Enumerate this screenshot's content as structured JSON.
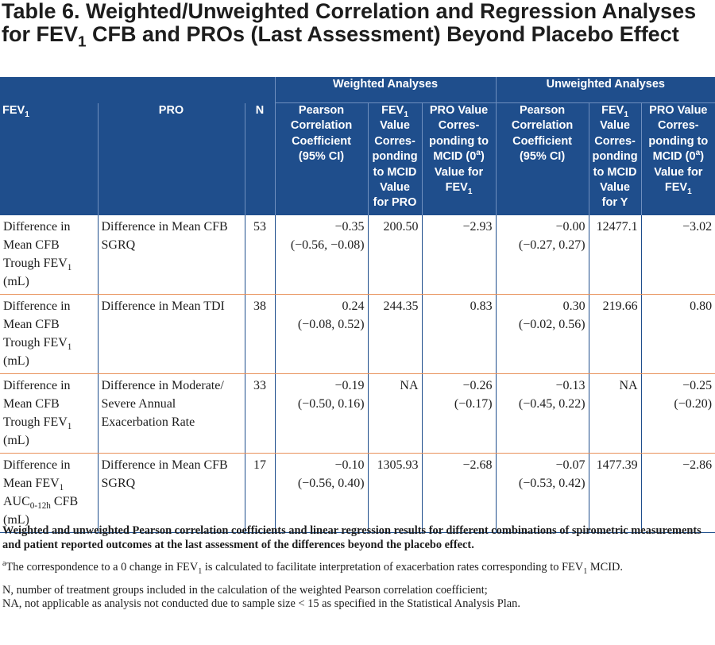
{
  "title": "Table 6. Weighted/Unweighted Correlation and Regression Analyses for FEV1 CFB and PROs (Last Assessment) Beyond Placebo Effect",
  "groups": {
    "weighted": "Weighted Analyses",
    "unweighted": "Unweighted Analyses"
  },
  "headers": {
    "fev1": "FEV1",
    "pro": "PRO",
    "n": "N",
    "pearson": "Pearson Correlation Coefficient (95% CI)",
    "fev1_value_pro": "FEV1 Value Corresponding to MCID Value for PRO",
    "pro_value_fev1": "PRO Value Corresponding to MCID (0a) Value for FEV1",
    "fev1_value_y": "FEV1 Value Corresponding to MCID Value for Y"
  },
  "rows": [
    {
      "fev1": "Difference in Mean CFB Trough FEV1 (mL)",
      "pro": "Difference in Mean CFB SGRQ",
      "n": "53",
      "w_r": "−0.35",
      "w_ci": "(−0.56, −0.08)",
      "w_fev": "200.50",
      "w_pro": "−2.93",
      "w_pro_b": "",
      "u_r": "−0.00",
      "u_ci": "(−0.27, 0.27)",
      "u_fev": "12477.1",
      "u_pro": "−3.02",
      "u_pro_b": ""
    },
    {
      "fev1": "Difference in Mean CFB Trough FEV1 (mL)",
      "pro": "Difference in Mean TDI",
      "n": "38",
      "w_r": "0.24",
      "w_ci": "(−0.08, 0.52)",
      "w_fev": "244.35",
      "w_pro": "0.83",
      "w_pro_b": "",
      "u_r": "0.30",
      "u_ci": "(−0.02, 0.56)",
      "u_fev": "219.66",
      "u_pro": "0.80",
      "u_pro_b": ""
    },
    {
      "fev1": "Difference in Mean CFB Trough FEV1 (mL)",
      "pro": "Difference in Moderate/ Severe Annual Exacerbation Rate",
      "n": "33",
      "w_r": "−0.19",
      "w_ci": "(−0.50, 0.16)",
      "w_fev": "NA",
      "w_pro": "−0.26",
      "w_pro_b": "(−0.17)",
      "u_r": "−0.13",
      "u_ci": "(−0.45, 0.22)",
      "u_fev": "NA",
      "u_pro": "−0.25",
      "u_pro_b": "(−0.20)"
    },
    {
      "fev1": "Difference in Mean FEV1 AUC0-12h CFB (mL)",
      "pro": "Difference in Mean CFB SGRQ",
      "n": "17",
      "w_r": "−0.10",
      "w_ci": "(−0.56, 0.40)",
      "w_fev": "1305.93",
      "w_pro": "−2.68",
      "w_pro_b": "",
      "u_r": "−0.07",
      "u_ci": "(−0.53, 0.42)",
      "u_fev": "1477.39",
      "u_pro": "−2.86",
      "u_pro_b": ""
    }
  ],
  "notes": {
    "summary": "Weighted and unweighted Pearson correlation coefficients and linear regression results for different combinations of spirometric measurements and patient reported outcomes at the last assessment of the differences beyond the placebo effect.",
    "footnote_a": "aThe correspondence to a 0 change in FEV1 is calculated to facilitate interpretation of exacerbation rates corresponding to FEV1 MCID.",
    "abbrev_n": "N, number of treatment groups included in the calculation of the weighted Pearson correlation coefficient;",
    "abbrev_na": "NA, not applicable as analysis not conducted due to sample size < 15 as specified in the Statistical Analysis Plan."
  }
}
